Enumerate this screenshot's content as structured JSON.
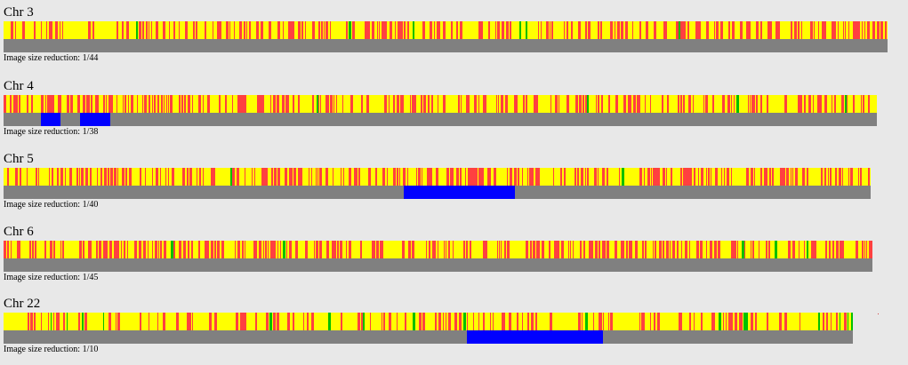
{
  "colors": {
    "background": "#e8e8e8",
    "homozygous_yellow": "#ffff00",
    "heterozygous_red": "#ff4040",
    "green": "#00c000",
    "roh_gray": "#808080",
    "roh_blue": "#0000ff"
  },
  "chromosomes": [
    {
      "title": "Chr 3",
      "reduction_text": "Image size reduction: 1/44",
      "roh_segments": [],
      "density": 0.55,
      "green_density": 0.02,
      "seed": 3
    },
    {
      "title": "Chr 4",
      "reduction_text": "Image size reduction: 1/38",
      "roh_segments": [
        [
          0.043,
          0.065
        ],
        [
          0.088,
          0.122
        ]
      ],
      "density": 0.55,
      "green_density": 0.01,
      "seed": 4
    },
    {
      "title": "Chr 5",
      "reduction_text": "Image size reduction: 1/40",
      "roh_segments": [
        [
          0.462,
          0.59
        ]
      ],
      "density": 0.55,
      "green_density": 0.01,
      "seed": 5
    },
    {
      "title": "Chr 6",
      "reduction_text": "Image size reduction: 1/45",
      "roh_segments": [],
      "density": 0.6,
      "green_density": 0.01,
      "seed": 6
    },
    {
      "title": "Chr 22",
      "reduction_text": "Image size reduction: 1/10",
      "roh_segments": [
        [
          0.546,
          0.706
        ]
      ],
      "density": 0.35,
      "green_density": 0.06,
      "seed": 22
    }
  ]
}
